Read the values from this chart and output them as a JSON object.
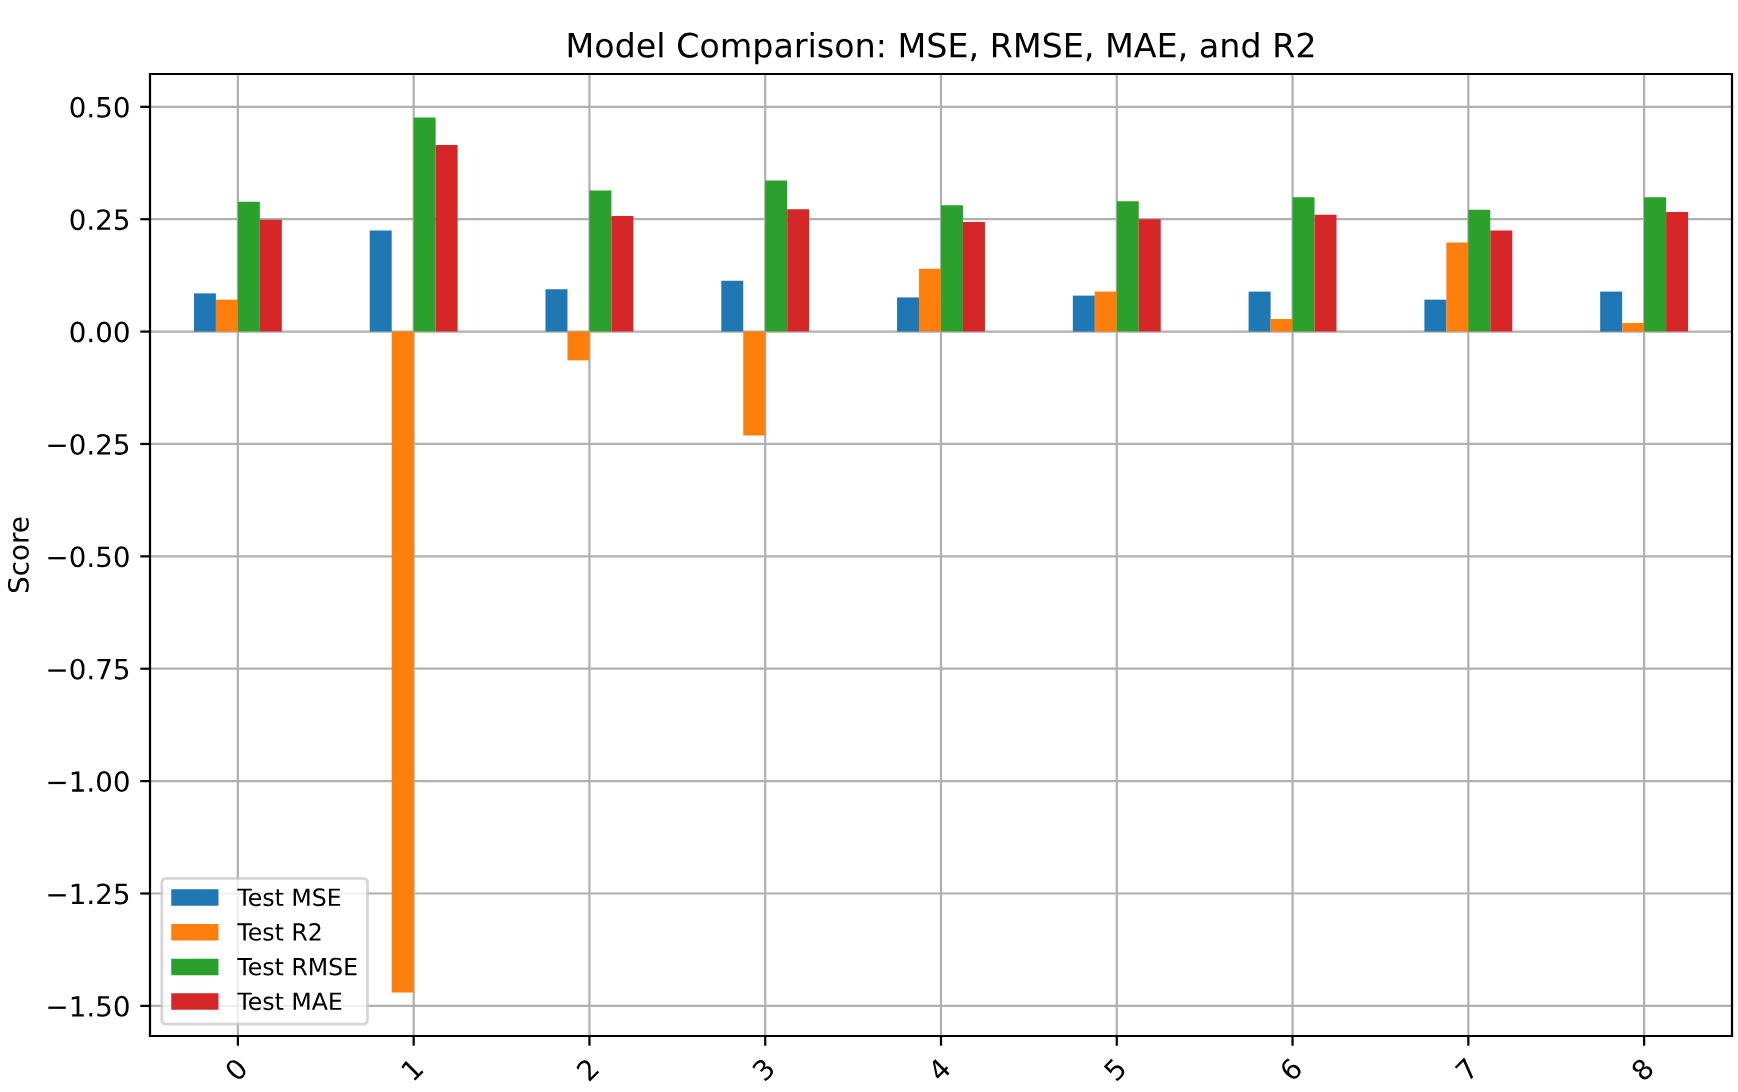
{
  "chart_data": {
    "type": "bar",
    "title": "Model Comparison: MSE, RMSE, MAE, and R2",
    "ylabel": "Score",
    "categories": [
      "0",
      "1",
      "2",
      "3",
      "4",
      "5",
      "6",
      "7",
      "8"
    ],
    "series": [
      {
        "name": "Test MSE",
        "color": "#1f77b4",
        "values": [
          0.085,
          0.225,
          0.094,
          0.113,
          0.076,
          0.08,
          0.089,
          0.071,
          0.089
        ]
      },
      {
        "name": "Test R2",
        "color": "#ff7f0e",
        "values": [
          0.071,
          -1.47,
          -0.064,
          -0.231,
          0.14,
          0.089,
          0.028,
          0.198,
          0.019
        ]
      },
      {
        "name": "Test RMSE",
        "color": "#2ca02c",
        "values": [
          0.289,
          0.476,
          0.314,
          0.336,
          0.281,
          0.29,
          0.299,
          0.271,
          0.299
        ]
      },
      {
        "name": "Test MAE",
        "color": "#d62728",
        "values": [
          0.249,
          0.415,
          0.257,
          0.272,
          0.244,
          0.25,
          0.26,
          0.225,
          0.266
        ]
      }
    ],
    "ylim": [
      -1.567,
      0.573
    ],
    "yticks": [
      {
        "value": -1.5,
        "label": "−1.50"
      },
      {
        "value": -1.25,
        "label": "−1.25"
      },
      {
        "value": -1.0,
        "label": "−1.00"
      },
      {
        "value": -0.75,
        "label": "−0.75"
      },
      {
        "value": -0.5,
        "label": "−0.50"
      },
      {
        "value": -0.25,
        "label": "−0.25"
      },
      {
        "value": 0.0,
        "label": "0.00"
      },
      {
        "value": 0.25,
        "label": "0.25"
      },
      {
        "value": 0.5,
        "label": "0.50"
      }
    ],
    "grid": true,
    "legend": "bottom left"
  }
}
